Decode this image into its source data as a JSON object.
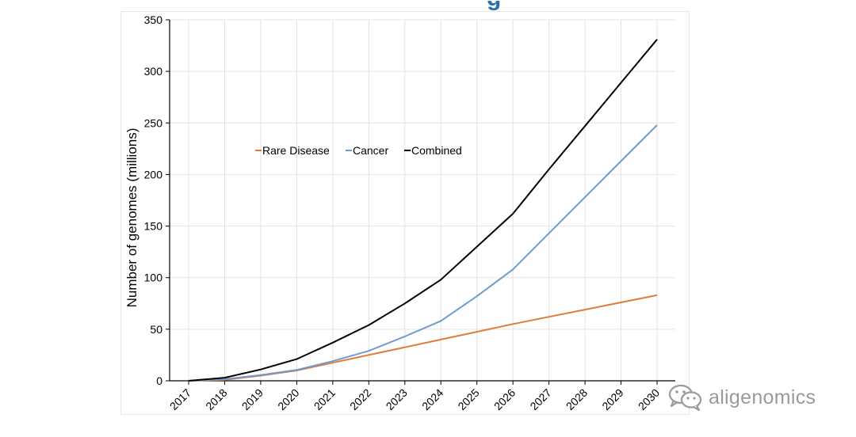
{
  "colors": {
    "rare_disease": "#e07b39",
    "cancer": "#6f9bd1",
    "combined": "#000000",
    "gridline": "#e3e3e3",
    "title_fragment": "#2e6db4",
    "watermark": "#9a9a9a"
  },
  "watermark": {
    "icon": "wechat-icon",
    "text": "aligenomics"
  },
  "chart_data": {
    "type": "line",
    "x": [
      "2017",
      "2018",
      "2019",
      "2020",
      "2021",
      "2022",
      "2023",
      "2024",
      "2025",
      "2026",
      "2027",
      "2028",
      "2029",
      "2030"
    ],
    "series": [
      {
        "name": "Rare Disease",
        "color_key": "rare_disease",
        "values": [
          0,
          1,
          5,
          10,
          17.5,
          25,
          32.5,
          40,
          47.5,
          55,
          62,
          69,
          76,
          83
        ]
      },
      {
        "name": "Cancer",
        "color_key": "cancer",
        "values": [
          0,
          1.5,
          5.5,
          10.5,
          19,
          29,
          43,
          58,
          82,
          108,
          143,
          178,
          213,
          248
        ]
      },
      {
        "name": "Combined",
        "color_key": "combined",
        "values": [
          0,
          3,
          11,
          21,
          37,
          54,
          75,
          98,
          130,
          162,
          205,
          247,
          289,
          331
        ]
      }
    ],
    "title": "",
    "xlabel": "",
    "ylabel": "Number of genomes (millions)",
    "ylim": [
      0,
      350
    ],
    "yticks": [
      0,
      50,
      100,
      150,
      200,
      250,
      300,
      350
    ],
    "xtick_rotation": "-45deg",
    "grid": "vertical and horizontal light gridlines",
    "legend_position": "upper-left inside plot, horizontal"
  }
}
